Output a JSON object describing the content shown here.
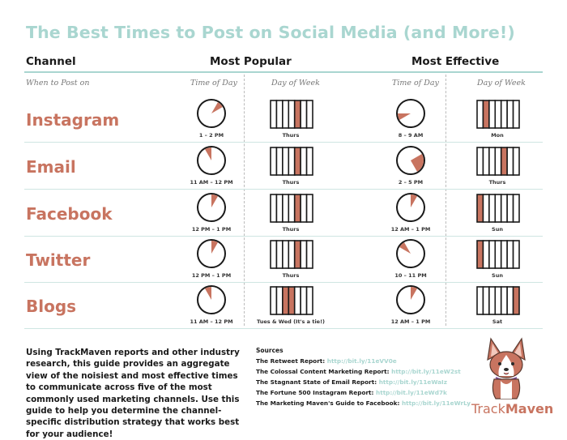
{
  "title": "The Best Times to Post on Social Media (and More!)",
  "headers": {
    "channel": "Channel",
    "most_popular": "Most Popular",
    "most_effective": "Most Effective"
  },
  "subheaders": {
    "when": "When to Post on",
    "time_of_day": "Time of Day",
    "day_of_week": "Day of Week"
  },
  "colors": {
    "accent": "#c87460",
    "teal": "#a9d6d0"
  },
  "rows": [
    {
      "channel": "Instagram",
      "popular": {
        "time": "1 – 2 PM",
        "start_hour": 1,
        "end_hour": 2,
        "day": "Thurs",
        "days": [
          4
        ]
      },
      "effective": {
        "time": "8 – 9 AM",
        "start_hour": 8,
        "end_hour": 9,
        "day": "Mon",
        "days": [
          1
        ]
      }
    },
    {
      "channel": "Email",
      "popular": {
        "time": "11 AM – 12 PM",
        "start_hour": 11,
        "end_hour": 12,
        "day": "Thurs",
        "days": [
          4
        ]
      },
      "effective": {
        "time": "2 – 5 PM",
        "start_hour": 2,
        "end_hour": 5,
        "day": "Thurs",
        "days": [
          4
        ]
      }
    },
    {
      "channel": "Facebook",
      "popular": {
        "time": "12 PM – 1 PM",
        "start_hour": 12,
        "end_hour": 13,
        "day": "Thurs",
        "days": [
          4
        ]
      },
      "effective": {
        "time": "12 AM – 1 PM",
        "start_hour": 12,
        "end_hour": 13,
        "day": "Sun",
        "days": [
          0
        ]
      }
    },
    {
      "channel": "Twitter",
      "popular": {
        "time": "12 PM – 1 PM",
        "start_hour": 12,
        "end_hour": 13,
        "day": "Thurs",
        "days": [
          4
        ]
      },
      "effective": {
        "time": "10 – 11 PM",
        "start_hour": 10,
        "end_hour": 11,
        "day": "Sun",
        "days": [
          0
        ]
      }
    },
    {
      "channel": "Blogs",
      "popular": {
        "time": "11 AM – 12 PM",
        "start_hour": 11,
        "end_hour": 12,
        "day": "Tues & Wed (It's a tie!)",
        "days": [
          2,
          3
        ]
      },
      "effective": {
        "time": "12 AM – 1 PM",
        "start_hour": 12,
        "end_hour": 13,
        "day": "Sat",
        "days": [
          6
        ]
      }
    }
  ],
  "description": "Using TrackMaven reports and other industry research, this guide provides an aggregate view of the noisiest and most effective times to communicate across five of the most commonly used marketing channels. Use this guide to help you determine the channel-specific distribution strategy that works best for your audience!",
  "sources": {
    "heading": "Sources",
    "items": [
      {
        "name": "The Retweet Report:",
        "url": "http://bit.ly/11eVV0e"
      },
      {
        "name": "The Colossal Content Marketing Report:",
        "url": "http://bit.ly/11eW2st"
      },
      {
        "name": "The Stagnant State of Email Report:",
        "url": "http://bit.ly/11eWaIz"
      },
      {
        "name": "The Fortune 500 Instagram Report:",
        "url": "http://bit.ly/11eWd7k"
      },
      {
        "name": "The Marketing Maven's Guide to Facebook:",
        "url": "http://bit.ly/11eWrLy"
      }
    ]
  },
  "logo": {
    "part1": "Track",
    "part2": "Maven",
    "icon": "corgi-mascot-icon"
  }
}
